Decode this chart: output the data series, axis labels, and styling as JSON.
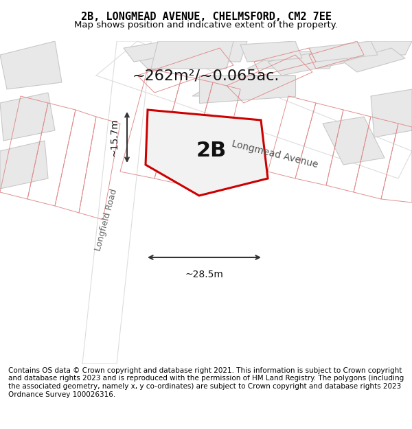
{
  "title_line1": "2B, LONGMEAD AVENUE, CHELMSFORD, CM2 7EE",
  "title_line2": "Map shows position and indicative extent of the property.",
  "footer_text": "Contains OS data © Crown copyright and database right 2021. This information is subject to Crown copyright and database rights 2023 and is reproduced with the permission of HM Land Registry. The polygons (including the associated geometry, namely x, y co-ordinates) are subject to Crown copyright and database rights 2023 Ordnance Survey 100026316.",
  "area_label": "~262m²/~0.065ac.",
  "property_label": "2B",
  "width_label": "~28.5m",
  "height_label": "~15.7m",
  "street_label": "Longmead Avenue",
  "side_street_label": "Longfield Road",
  "bg_color": "#ffffff",
  "map_bg": "#f5f5f5",
  "building_fill": "#e8e8e8",
  "building_stroke": "#cccccc",
  "road_fill": "#ffffff",
  "road_outline": "#e0e0e0",
  "property_fill": "#f0f0f0",
  "property_stroke": "#e00000",
  "red_line_color": "#e8a0a0",
  "dim_color": "#333333",
  "title_fontsize": 11,
  "subtitle_fontsize": 9.5,
  "footer_fontsize": 7.5,
  "label_fontsize": 18,
  "area_fontsize": 16,
  "street_fontsize": 10,
  "dim_fontsize": 10
}
